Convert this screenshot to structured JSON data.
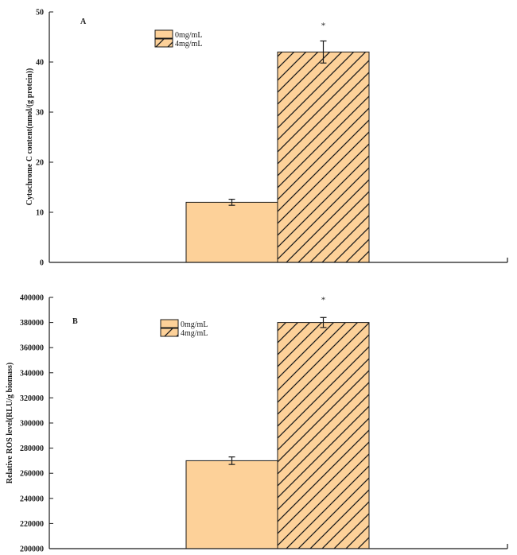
{
  "chart_data": [
    {
      "type": "bar",
      "panel_label": "A",
      "categories": [
        "0mg/mL",
        "4mg/mL"
      ],
      "values": [
        12,
        42
      ],
      "errors": [
        0.6,
        2.2
      ],
      "significance": [
        "",
        "*"
      ],
      "ylabel": "Cytochrome C content(nmol/(g protein))",
      "ylim": [
        0,
        50
      ],
      "yticks": [
        "0",
        "10",
        "20",
        "30",
        "40",
        "50"
      ],
      "legend": [
        "0mg/mL",
        "4mg/mL"
      ],
      "legend_position": "top-left",
      "grid": false
    },
    {
      "type": "bar",
      "panel_label": "B",
      "categories": [
        "0mg/mL",
        "4mg/mL"
      ],
      "values": [
        270000,
        380000
      ],
      "errors": [
        3000,
        4000
      ],
      "significance": [
        "",
        "*"
      ],
      "ylabel": "Relative ROS level(RLU/g biomass)",
      "ylim": [
        200000,
        400000
      ],
      "yticks": [
        "200000",
        "220000",
        "240000",
        "260000",
        "280000",
        "300000",
        "320000",
        "340000",
        "360000",
        "380000",
        "400000"
      ],
      "legend": [
        "0mg/mL",
        "4mg/mL"
      ],
      "legend_position": "top-left",
      "grid": false
    }
  ],
  "colors": {
    "bar_fill": "#fdd199",
    "bar_stroke": "#1a1a1a",
    "hatch": "#1a1a1a",
    "axis": "#1a1a1a"
  }
}
